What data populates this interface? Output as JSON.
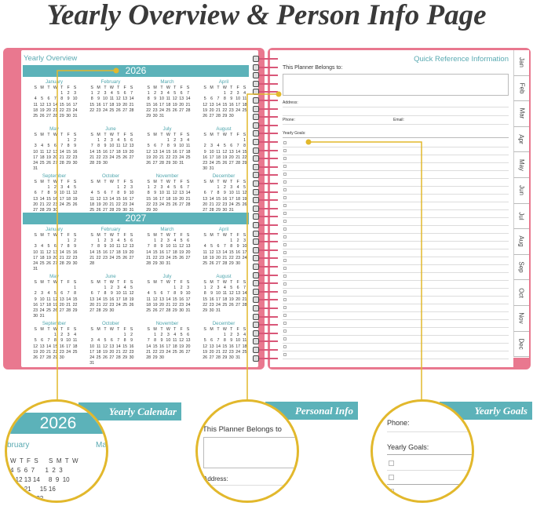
{
  "title": "Yearly Overview & Person Info Page",
  "left_page": {
    "heading": "Yearly Overview",
    "weekdays": [
      "S",
      "M",
      "T",
      "W",
      "T",
      "F",
      "S"
    ],
    "years": [
      {
        "year": "2026",
        "months": [
          {
            "name": "January",
            "start_weekday": 4,
            "days": 31
          },
          {
            "name": "February",
            "start_weekday": 0,
            "days": 28
          },
          {
            "name": "March",
            "start_weekday": 0,
            "days": 31
          },
          {
            "name": "April",
            "start_weekday": 3,
            "days": 30
          },
          {
            "name": "May",
            "start_weekday": 5,
            "days": 31
          },
          {
            "name": "June",
            "start_weekday": 1,
            "days": 30
          },
          {
            "name": "July",
            "start_weekday": 3,
            "days": 31
          },
          {
            "name": "August",
            "start_weekday": 6,
            "days": 31
          },
          {
            "name": "September",
            "start_weekday": 2,
            "days": 30
          },
          {
            "name": "October",
            "start_weekday": 4,
            "days": 31
          },
          {
            "name": "November",
            "start_weekday": 0,
            "days": 30
          },
          {
            "name": "December",
            "start_weekday": 2,
            "days": 31
          }
        ]
      },
      {
        "year": "2027",
        "months": [
          {
            "name": "January",
            "start_weekday": 5,
            "days": 31
          },
          {
            "name": "February",
            "start_weekday": 1,
            "days": 28
          },
          {
            "name": "March",
            "start_weekday": 1,
            "days": 31
          },
          {
            "name": "April",
            "start_weekday": 4,
            "days": 30
          },
          {
            "name": "May",
            "start_weekday": 6,
            "days": 31
          },
          {
            "name": "June",
            "start_weekday": 2,
            "days": 30
          },
          {
            "name": "July",
            "start_weekday": 4,
            "days": 31
          },
          {
            "name": "August",
            "start_weekday": 0,
            "days": 31
          },
          {
            "name": "September",
            "start_weekday": 3,
            "days": 30
          },
          {
            "name": "October",
            "start_weekday": 5,
            "days": 31
          },
          {
            "name": "November",
            "start_weekday": 1,
            "days": 30
          },
          {
            "name": "December",
            "start_weekday": 3,
            "days": 31
          }
        ]
      }
    ]
  },
  "right_page": {
    "heading": "Quick Reference Information",
    "belongs_label": "This Planner Belongs to:",
    "address_label": "Address:",
    "phone_label": "Phone:",
    "email_label": "Email:",
    "goals_label": "Yearly Goals:",
    "tabs": [
      "Jan",
      "Feb",
      "Mar",
      "Apr",
      "May",
      "Jun",
      "Jul",
      "Aug",
      "Sep",
      "Oct",
      "Nov",
      "Dec"
    ]
  },
  "callouts": [
    {
      "label": "Yearly Calendar",
      "zoom_year": "2026",
      "zoom_month_left": "bruary",
      "zoom_month_right": "Ma"
    },
    {
      "label": "Personal Info",
      "zoom_text": "This Planner Belongs to",
      "zoom_address": "Address:"
    },
    {
      "label": "Yearly Goals",
      "zoom_phone": "Phone:",
      "zoom_goals": "Yearly Goals:"
    }
  ],
  "colors": {
    "accent_teal": "#5cb2b9",
    "cover_pink": "#e9788f",
    "callout_yellow": "#e2b82c"
  }
}
